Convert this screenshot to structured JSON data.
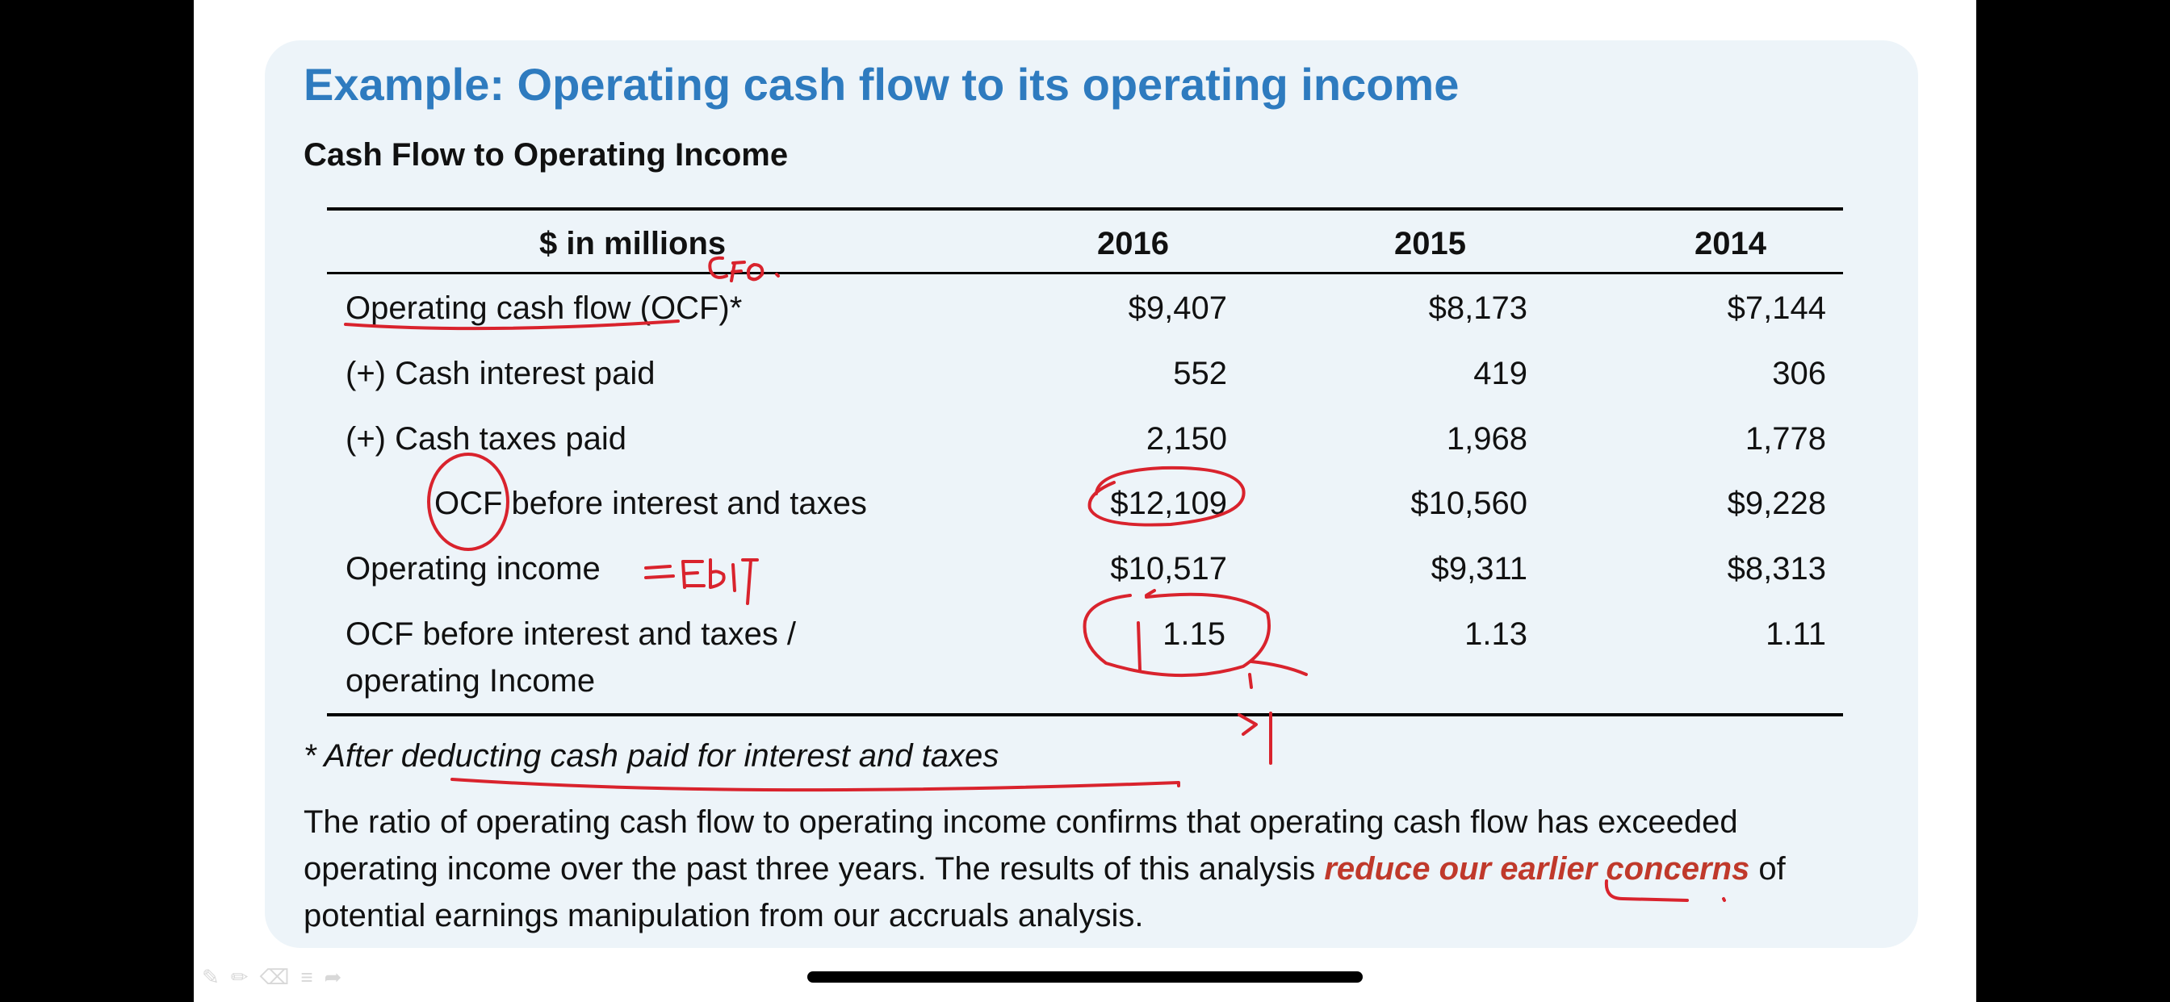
{
  "slide": {
    "title": "Example: Operating cash flow to its operating income",
    "subtitle": "Cash Flow to Operating Income"
  },
  "table": {
    "headers": [
      "$ in millions",
      "2016",
      "2015",
      "2014"
    ],
    "rows": [
      {
        "label": "Operating cash flow (OCF)*",
        "values": [
          "$9,407",
          "$8,173",
          "$7,144"
        ]
      },
      {
        "label": "(+) Cash interest paid",
        "values": [
          "552",
          "419",
          "306"
        ]
      },
      {
        "label": "(+) Cash taxes paid",
        "values": [
          "2,150",
          "1,968",
          "1,778"
        ]
      },
      {
        "label": "OCF before interest and taxes",
        "values": [
          "$12,109",
          "$10,560",
          "$9,228"
        ]
      },
      {
        "label": "Operating income",
        "values": [
          "$10,517",
          "$9,311",
          "$8,313"
        ]
      },
      {
        "label_line1": "OCF before interest and taxes /",
        "label_line2": "operating Income",
        "values": [
          "1.15",
          "1.13",
          "1.11"
        ]
      }
    ]
  },
  "footnote": "* After deducting cash paid for interest and taxes",
  "paragraph": {
    "part1": "The ratio of operating cash flow to operating income confirms that operating cash flow has exceeded operating income over the past three years. The results of this analysis ",
    "highlight": "reduce our earlier concerns",
    "part2": " of potential earnings manipulation from our accruals analysis."
  },
  "annotations": {
    "ink_color": "#d9232d",
    "near_header": "CFO.",
    "near_operating_income": "= EBIT",
    "below_ratio": ">1"
  },
  "toolbar_icons": [
    "pen-icon",
    "pencil-icon",
    "eraser-icon",
    "menu-icon",
    "forward-icon"
  ]
}
